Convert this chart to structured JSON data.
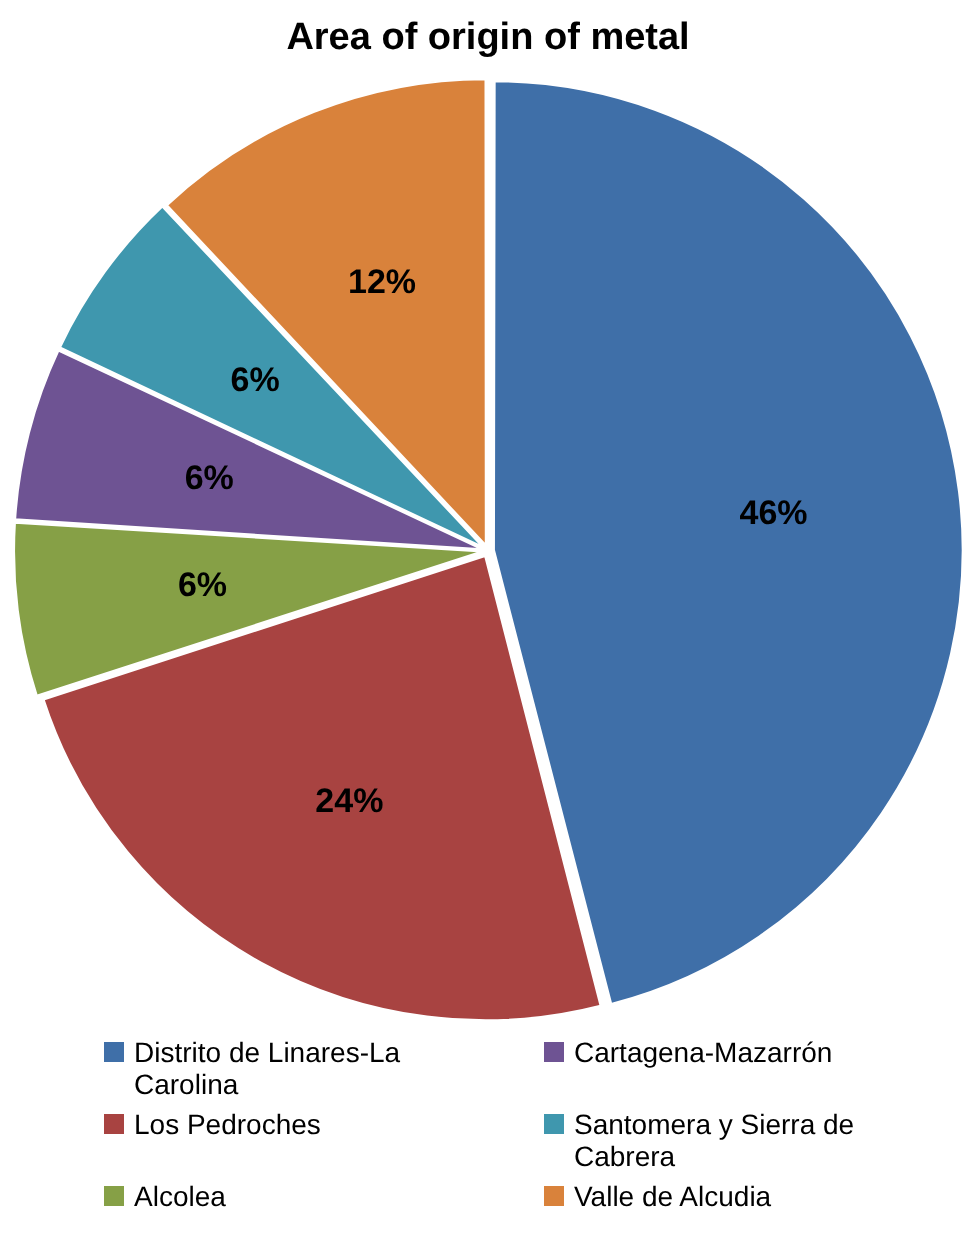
{
  "chart_data": {
    "type": "pie",
    "title": "Area of origin of metal",
    "categories": [
      "Distrito de Linares-La Carolina",
      "Los Pedroches",
      "Alcolea",
      "Cartagena-Mazarrón",
      "Santomera y Sierra de Cabrera",
      "Valle de Alcudia"
    ],
    "values": [
      46,
      24,
      6,
      6,
      6,
      12
    ],
    "colors": [
      "#3f6fa8",
      "#a84341",
      "#86a046",
      "#6e5393",
      "#3f97ae",
      "#d9823b"
    ],
    "value_labels": [
      "46%",
      "24%",
      "6%",
      "6%",
      "6%",
      "12%"
    ],
    "legend": "bottom"
  }
}
